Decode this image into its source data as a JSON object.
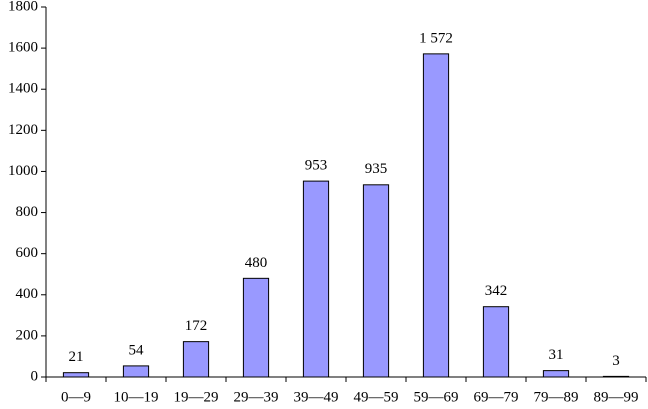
{
  "chart_data": {
    "type": "bar",
    "categories": [
      "0—9",
      "10—19",
      "19—29",
      "29—39",
      "39—49",
      "49—59",
      "59—69",
      "69—79",
      "79—89",
      "89—99"
    ],
    "values": [
      21,
      54,
      172,
      480,
      953,
      935,
      1572,
      342,
      31,
      3
    ],
    "value_labels": [
      "21",
      "54",
      "172",
      "480",
      "953",
      "935",
      "1 572",
      "342",
      "31",
      "3"
    ],
    "color": "#9999ff",
    "ylim": [
      0,
      1800
    ],
    "yticks": [
      0,
      200,
      400,
      600,
      800,
      1000,
      1200,
      1400,
      1600,
      1800
    ]
  }
}
